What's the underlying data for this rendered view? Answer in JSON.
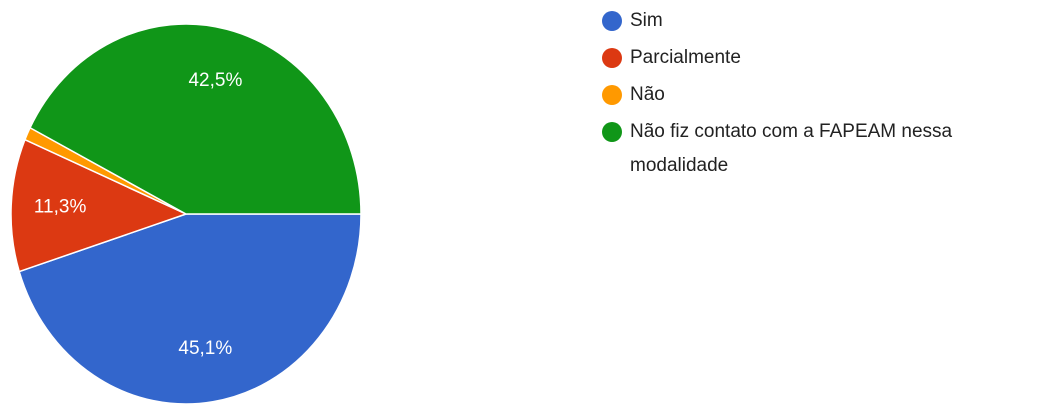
{
  "chart_data": {
    "type": "pie",
    "categories": [
      "Sim",
      "Parcialmente",
      "Não",
      "Não fiz contato com a FAPEAM nessa modalidade"
    ],
    "values": [
      45.1,
      11.3,
      1.1,
      42.5
    ],
    "value_labels": [
      "45,1%",
      "11,3%",
      null,
      "42,5%"
    ],
    "colors": [
      "#3366cc",
      "#dc3912",
      "#ff9900",
      "#109618"
    ],
    "legend": "right"
  }
}
